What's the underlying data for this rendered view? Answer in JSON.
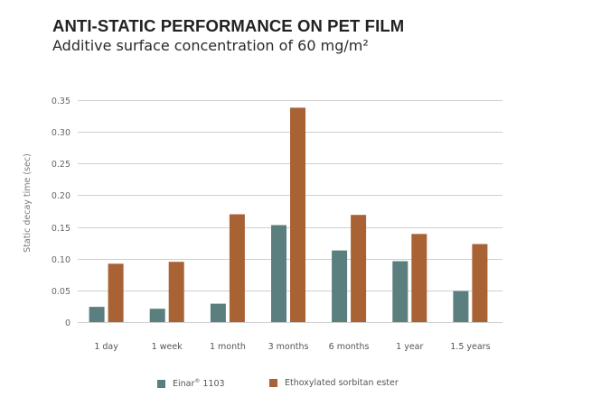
{
  "title": "ANTI-STATIC PERFORMANCE ON PET FILM",
  "subtitle": "Additive surface concentration of 60 mg/m²",
  "colors": {
    "series_1": "#5a7f7e",
    "series_2": "#a86234",
    "grid": "#cfcfcf"
  },
  "chart_data": {
    "type": "bar",
    "title": "ANTI-STATIC PERFORMANCE ON PET FILM",
    "subtitle": "Additive surface concentration of 60 mg/m²",
    "xlabel": "",
    "ylabel": "Static decay time (sec)",
    "ylim": [
      0,
      0.35
    ],
    "yticks": [
      0,
      0.05,
      0.1,
      0.15,
      0.2,
      0.25,
      0.3,
      0.35
    ],
    "ytick_labels": [
      "0",
      "0.05",
      "0.10",
      "0.15",
      "0.20",
      "0.25",
      "0.30",
      "0.35"
    ],
    "grid": true,
    "legend_position": "bottom-center",
    "categories": [
      "1 day",
      "1 week",
      "1 month",
      "3 months",
      "6 months",
      "1 year",
      "1.5 years"
    ],
    "series": [
      {
        "name": "Einar® 1103",
        "name_base": "Einar",
        "name_mark": "®",
        "name_suffix": " 1103",
        "values": [
          0.024,
          0.021,
          0.029,
          0.153,
          0.113,
          0.096,
          0.049
        ]
      },
      {
        "name": "Ethoxylated sorbitan ester",
        "values": [
          0.092,
          0.095,
          0.17,
          0.338,
          0.169,
          0.139,
          0.123
        ]
      }
    ]
  }
}
